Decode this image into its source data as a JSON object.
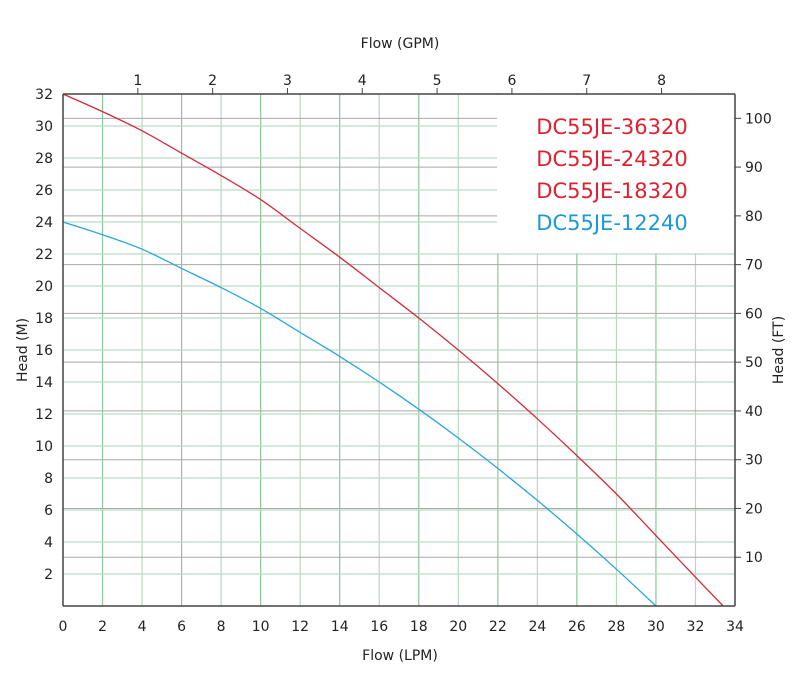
{
  "chart_data": {
    "type": "line",
    "xlabel": "Flow (LPM)",
    "x2label": "Flow (GPM)",
    "ylabel": "Head (M)",
    "y2label": "Head (FT)",
    "xlim": [
      0,
      34
    ],
    "ylim": [
      0,
      32
    ],
    "x_ticks": [
      0,
      2,
      4,
      6,
      8,
      10,
      12,
      14,
      16,
      18,
      20,
      22,
      24,
      26,
      28,
      30,
      32,
      34
    ],
    "y_ticks": [
      2,
      4,
      6,
      8,
      10,
      12,
      14,
      16,
      18,
      20,
      22,
      24,
      26,
      28,
      30,
      32
    ],
    "x2_ticks": [
      1,
      2,
      3,
      4,
      5,
      6,
      7,
      8
    ],
    "y2_ticks": [
      10,
      20,
      30,
      40,
      50,
      60,
      70,
      80,
      90,
      100
    ],
    "grid": true,
    "legend_position": "top-right",
    "legend": [
      {
        "label": "DC55JE-36320",
        "color": "#e0202e"
      },
      {
        "label": "DC55JE-24320",
        "color": "#e0202e"
      },
      {
        "label": "DC55JE-18320",
        "color": "#e0202e"
      },
      {
        "label": "DC55JE-12240",
        "color": "#1a9ad6"
      }
    ],
    "series": [
      {
        "color": "#d42a3c",
        "x": [
          0,
          2,
          4,
          6,
          8,
          10,
          12,
          14,
          16,
          18,
          20,
          22,
          24,
          26,
          28,
          30,
          32,
          33.4
        ],
        "y": [
          32,
          30.9,
          29.7,
          28.3,
          26.9,
          25.4,
          23.6,
          21.8,
          19.9,
          18.0,
          16.0,
          13.9,
          11.7,
          9.4,
          7.0,
          4.4,
          1.8,
          0
        ]
      },
      {
        "color": "#2aa6dc",
        "x": [
          0,
          2,
          4,
          6,
          8,
          10,
          12,
          14,
          16,
          18,
          20,
          22,
          24,
          26,
          28,
          30
        ],
        "y": [
          24,
          23.2,
          22.3,
          21.1,
          19.9,
          18.6,
          17.1,
          15.6,
          14.0,
          12.3,
          10.5,
          8.6,
          6.6,
          4.5,
          2.3,
          0
        ]
      }
    ]
  }
}
